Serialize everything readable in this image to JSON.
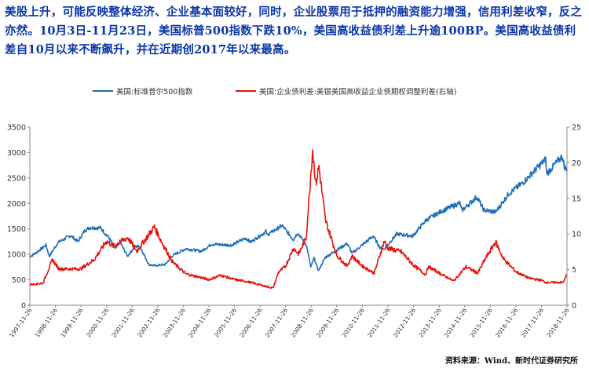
{
  "headline": "美股上升，可能反映整体经济、企业基本面较好，同时，企业股票用于抵押的融资能力增强，信用利差收窄，反之亦然。10月3日-11月23日，美国标普500指数下跌10%，美国高收益债利差上升逾100BP。美国高收益债利差自10月以来不断飙升，并在近期创2017年以来最高。",
  "source": "资料来源：Wind、新时代证券研究所",
  "chart_data": {
    "type": "line",
    "x_tick_labels": [
      "1997-11-26",
      "1998-11-26",
      "1999-11-26",
      "2000-11-26",
      "2001-11-26",
      "2002-11-26",
      "2003-11-26",
      "2004-11-26",
      "2005-11-26",
      "2006-11-26",
      "2007-11-26",
      "2008-11-26",
      "2009-11-26",
      "2010-11-26",
      "2011-11-26",
      "2012-11-26",
      "2013-11-26",
      "2014-11-26",
      "2015-11-26",
      "2016-11-26",
      "2017-11-26",
      "2018-11-26"
    ],
    "y_left": {
      "min": 0,
      "max": 3500,
      "ticks": [
        0,
        500,
        1000,
        1500,
        2000,
        2500,
        3000,
        3500
      ]
    },
    "y_right": {
      "min": 0,
      "max": 25,
      "ticks": [
        0,
        5,
        10,
        15,
        20,
        25
      ]
    },
    "grid": false,
    "legend_position": "top",
    "series": [
      {
        "name": "美国:标准普尔500指数",
        "axis": "left",
        "color": "#1f6fb8",
        "points": [
          [
            "1997-11-26",
            955
          ],
          [
            "1998-02-01",
            1010
          ],
          [
            "1998-07-15",
            1180
          ],
          [
            "1998-08-31",
            960
          ],
          [
            "1998-12-31",
            1230
          ],
          [
            "1999-06-30",
            1370
          ],
          [
            "1999-10-15",
            1250
          ],
          [
            "2000-01-15",
            1460
          ],
          [
            "2000-03-24",
            1527
          ],
          [
            "2000-09-01",
            1520
          ],
          [
            "2001-01-01",
            1320
          ],
          [
            "2001-04-04",
            1100
          ],
          [
            "2001-06-01",
            1250
          ],
          [
            "2001-09-21",
            965
          ],
          [
            "2002-01-01",
            1150
          ],
          [
            "2002-03-15",
            1160
          ],
          [
            "2002-07-23",
            800
          ],
          [
            "2002-10-09",
            777
          ],
          [
            "2003-03-11",
            800
          ],
          [
            "2003-07-01",
            980
          ],
          [
            "2004-01-01",
            1110
          ],
          [
            "2004-08-12",
            1060
          ],
          [
            "2005-01-01",
            1200
          ],
          [
            "2005-10-15",
            1180
          ],
          [
            "2006-05-05",
            1320
          ],
          [
            "2006-07-15",
            1240
          ],
          [
            "2007-02-20",
            1450
          ],
          [
            "2007-03-05",
            1380
          ],
          [
            "2007-10-09",
            1565
          ],
          [
            "2008-03-15",
            1290
          ],
          [
            "2008-05-15",
            1420
          ],
          [
            "2008-09-15",
            1200
          ],
          [
            "2008-11-20",
            750
          ],
          [
            "2009-01-05",
            930
          ],
          [
            "2009-03-09",
            677
          ],
          [
            "2009-06-15",
            940
          ],
          [
            "2010-01-01",
            1115
          ],
          [
            "2010-04-23",
            1217
          ],
          [
            "2010-07-02",
            1020
          ],
          [
            "2011-04-29",
            1360
          ],
          [
            "2011-08-10",
            1120
          ],
          [
            "2011-10-03",
            1100
          ],
          [
            "2012-04-01",
            1400
          ],
          [
            "2012-11-15",
            1360
          ],
          [
            "2013-05-21",
            1670
          ],
          [
            "2013-12-31",
            1850
          ],
          [
            "2014-09-18",
            2010
          ],
          [
            "2014-10-15",
            1860
          ],
          [
            "2015-05-21",
            2130
          ],
          [
            "2015-08-25",
            1870
          ],
          [
            "2016-02-11",
            1830
          ],
          [
            "2016-08-15",
            2190
          ],
          [
            "2017-03-01",
            2400
          ],
          [
            "2018-01-26",
            2870
          ],
          [
            "2018-02-08",
            2580
          ],
          [
            "2018-09-20",
            2930
          ],
          [
            "2018-10-15",
            2750
          ],
          [
            "2018-11-23",
            2630
          ]
        ]
      },
      {
        "name": "美国:企业债利差:美银美国高收益企业债期权调整利差(右轴)",
        "axis": "right",
        "color": "#e8120c",
        "points": [
          [
            "1997-11-26",
            2.9
          ],
          [
            "1998-06-01",
            3.1
          ],
          [
            "1998-10-15",
            6.4
          ],
          [
            "1999-01-15",
            5.1
          ],
          [
            "1999-11-26",
            5.1
          ],
          [
            "2000-06-01",
            6.4
          ],
          [
            "2000-11-26",
            9.0
          ],
          [
            "2001-03-01",
            8.3
          ],
          [
            "2001-09-25",
            9.5
          ],
          [
            "2002-02-01",
            7.6
          ],
          [
            "2002-10-10",
            11.0
          ],
          [
            "2003-01-15",
            9.0
          ],
          [
            "2003-07-01",
            6.0
          ],
          [
            "2004-01-01",
            4.4
          ],
          [
            "2004-11-26",
            3.6
          ],
          [
            "2005-05-15",
            4.2
          ],
          [
            "2005-11-26",
            3.6
          ],
          [
            "2006-06-01",
            3.3
          ],
          [
            "2007-05-31",
            2.4
          ],
          [
            "2007-08-15",
            4.6
          ],
          [
            "2007-11-26",
            5.5
          ],
          [
            "2008-03-15",
            8.0
          ],
          [
            "2008-06-01",
            7.2
          ],
          [
            "2008-09-15",
            9.5
          ],
          [
            "2008-12-15",
            21.8
          ],
          [
            "2009-02-01",
            17.0
          ],
          [
            "2009-03-15",
            19.5
          ],
          [
            "2009-06-15",
            12.0
          ],
          [
            "2009-11-26",
            7.0
          ],
          [
            "2010-04-20",
            5.5
          ],
          [
            "2010-07-01",
            6.9
          ],
          [
            "2010-11-26",
            5.5
          ],
          [
            "2011-05-15",
            4.5
          ],
          [
            "2011-10-04",
            9.0
          ],
          [
            "2011-11-26",
            8.0
          ],
          [
            "2012-06-04",
            7.5
          ],
          [
            "2012-11-26",
            5.6
          ],
          [
            "2013-05-15",
            4.3
          ],
          [
            "2013-06-25",
            5.4
          ],
          [
            "2014-06-20",
            3.4
          ],
          [
            "2014-12-15",
            5.4
          ],
          [
            "2015-06-01",
            4.5
          ],
          [
            "2015-09-15",
            6.5
          ],
          [
            "2016-02-11",
            8.9
          ],
          [
            "2016-06-01",
            6.5
          ],
          [
            "2016-11-26",
            4.7
          ],
          [
            "2017-06-01",
            3.8
          ],
          [
            "2017-11-26",
            3.5
          ],
          [
            "2018-01-26",
            3.2
          ],
          [
            "2018-10-03",
            3.2
          ],
          [
            "2018-11-23",
            4.3
          ]
        ]
      }
    ]
  }
}
